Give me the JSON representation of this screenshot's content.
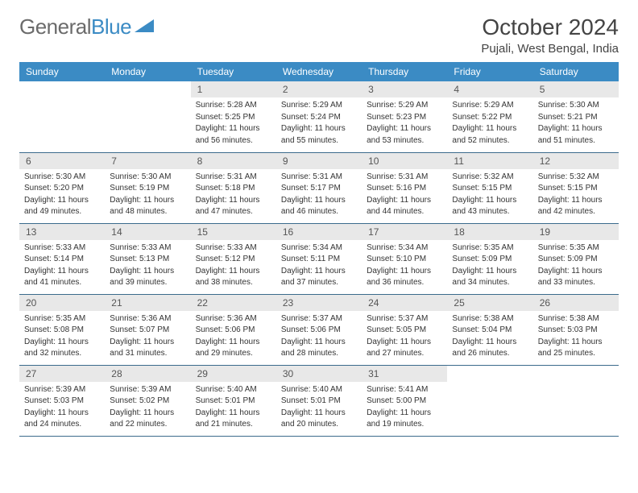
{
  "logo": {
    "text1": "General",
    "text2": "Blue"
  },
  "title": "October 2024",
  "location": "Pujali, West Bengal, India",
  "colors": {
    "header_bg": "#3b8bc4",
    "header_fg": "#ffffff",
    "daynum_bg": "#e8e8e8",
    "border": "#3b6b8c",
    "logo_gray": "#6b6b6b",
    "logo_blue": "#3b8bc4",
    "text": "#333333"
  },
  "typography": {
    "title_fontsize": 28,
    "location_fontsize": 15,
    "dayheader_fontsize": 12,
    "daynum_fontsize": 12,
    "body_fontsize": 10
  },
  "weekdays": [
    "Sunday",
    "Monday",
    "Tuesday",
    "Wednesday",
    "Thursday",
    "Friday",
    "Saturday"
  ],
  "weeks": [
    [
      null,
      null,
      {
        "n": "1",
        "sr": "Sunrise: 5:28 AM",
        "ss": "Sunset: 5:25 PM",
        "dl1": "Daylight: 11 hours",
        "dl2": "and 56 minutes."
      },
      {
        "n": "2",
        "sr": "Sunrise: 5:29 AM",
        "ss": "Sunset: 5:24 PM",
        "dl1": "Daylight: 11 hours",
        "dl2": "and 55 minutes."
      },
      {
        "n": "3",
        "sr": "Sunrise: 5:29 AM",
        "ss": "Sunset: 5:23 PM",
        "dl1": "Daylight: 11 hours",
        "dl2": "and 53 minutes."
      },
      {
        "n": "4",
        "sr": "Sunrise: 5:29 AM",
        "ss": "Sunset: 5:22 PM",
        "dl1": "Daylight: 11 hours",
        "dl2": "and 52 minutes."
      },
      {
        "n": "5",
        "sr": "Sunrise: 5:30 AM",
        "ss": "Sunset: 5:21 PM",
        "dl1": "Daylight: 11 hours",
        "dl2": "and 51 minutes."
      }
    ],
    [
      {
        "n": "6",
        "sr": "Sunrise: 5:30 AM",
        "ss": "Sunset: 5:20 PM",
        "dl1": "Daylight: 11 hours",
        "dl2": "and 49 minutes."
      },
      {
        "n": "7",
        "sr": "Sunrise: 5:30 AM",
        "ss": "Sunset: 5:19 PM",
        "dl1": "Daylight: 11 hours",
        "dl2": "and 48 minutes."
      },
      {
        "n": "8",
        "sr": "Sunrise: 5:31 AM",
        "ss": "Sunset: 5:18 PM",
        "dl1": "Daylight: 11 hours",
        "dl2": "and 47 minutes."
      },
      {
        "n": "9",
        "sr": "Sunrise: 5:31 AM",
        "ss": "Sunset: 5:17 PM",
        "dl1": "Daylight: 11 hours",
        "dl2": "and 46 minutes."
      },
      {
        "n": "10",
        "sr": "Sunrise: 5:31 AM",
        "ss": "Sunset: 5:16 PM",
        "dl1": "Daylight: 11 hours",
        "dl2": "and 44 minutes."
      },
      {
        "n": "11",
        "sr": "Sunrise: 5:32 AM",
        "ss": "Sunset: 5:15 PM",
        "dl1": "Daylight: 11 hours",
        "dl2": "and 43 minutes."
      },
      {
        "n": "12",
        "sr": "Sunrise: 5:32 AM",
        "ss": "Sunset: 5:15 PM",
        "dl1": "Daylight: 11 hours",
        "dl2": "and 42 minutes."
      }
    ],
    [
      {
        "n": "13",
        "sr": "Sunrise: 5:33 AM",
        "ss": "Sunset: 5:14 PM",
        "dl1": "Daylight: 11 hours",
        "dl2": "and 41 minutes."
      },
      {
        "n": "14",
        "sr": "Sunrise: 5:33 AM",
        "ss": "Sunset: 5:13 PM",
        "dl1": "Daylight: 11 hours",
        "dl2": "and 39 minutes."
      },
      {
        "n": "15",
        "sr": "Sunrise: 5:33 AM",
        "ss": "Sunset: 5:12 PM",
        "dl1": "Daylight: 11 hours",
        "dl2": "and 38 minutes."
      },
      {
        "n": "16",
        "sr": "Sunrise: 5:34 AM",
        "ss": "Sunset: 5:11 PM",
        "dl1": "Daylight: 11 hours",
        "dl2": "and 37 minutes."
      },
      {
        "n": "17",
        "sr": "Sunrise: 5:34 AM",
        "ss": "Sunset: 5:10 PM",
        "dl1": "Daylight: 11 hours",
        "dl2": "and 36 minutes."
      },
      {
        "n": "18",
        "sr": "Sunrise: 5:35 AM",
        "ss": "Sunset: 5:09 PM",
        "dl1": "Daylight: 11 hours",
        "dl2": "and 34 minutes."
      },
      {
        "n": "19",
        "sr": "Sunrise: 5:35 AM",
        "ss": "Sunset: 5:09 PM",
        "dl1": "Daylight: 11 hours",
        "dl2": "and 33 minutes."
      }
    ],
    [
      {
        "n": "20",
        "sr": "Sunrise: 5:35 AM",
        "ss": "Sunset: 5:08 PM",
        "dl1": "Daylight: 11 hours",
        "dl2": "and 32 minutes."
      },
      {
        "n": "21",
        "sr": "Sunrise: 5:36 AM",
        "ss": "Sunset: 5:07 PM",
        "dl1": "Daylight: 11 hours",
        "dl2": "and 31 minutes."
      },
      {
        "n": "22",
        "sr": "Sunrise: 5:36 AM",
        "ss": "Sunset: 5:06 PM",
        "dl1": "Daylight: 11 hours",
        "dl2": "and 29 minutes."
      },
      {
        "n": "23",
        "sr": "Sunrise: 5:37 AM",
        "ss": "Sunset: 5:06 PM",
        "dl1": "Daylight: 11 hours",
        "dl2": "and 28 minutes."
      },
      {
        "n": "24",
        "sr": "Sunrise: 5:37 AM",
        "ss": "Sunset: 5:05 PM",
        "dl1": "Daylight: 11 hours",
        "dl2": "and 27 minutes."
      },
      {
        "n": "25",
        "sr": "Sunrise: 5:38 AM",
        "ss": "Sunset: 5:04 PM",
        "dl1": "Daylight: 11 hours",
        "dl2": "and 26 minutes."
      },
      {
        "n": "26",
        "sr": "Sunrise: 5:38 AM",
        "ss": "Sunset: 5:03 PM",
        "dl1": "Daylight: 11 hours",
        "dl2": "and 25 minutes."
      }
    ],
    [
      {
        "n": "27",
        "sr": "Sunrise: 5:39 AM",
        "ss": "Sunset: 5:03 PM",
        "dl1": "Daylight: 11 hours",
        "dl2": "and 24 minutes."
      },
      {
        "n": "28",
        "sr": "Sunrise: 5:39 AM",
        "ss": "Sunset: 5:02 PM",
        "dl1": "Daylight: 11 hours",
        "dl2": "and 22 minutes."
      },
      {
        "n": "29",
        "sr": "Sunrise: 5:40 AM",
        "ss": "Sunset: 5:01 PM",
        "dl1": "Daylight: 11 hours",
        "dl2": "and 21 minutes."
      },
      {
        "n": "30",
        "sr": "Sunrise: 5:40 AM",
        "ss": "Sunset: 5:01 PM",
        "dl1": "Daylight: 11 hours",
        "dl2": "and 20 minutes."
      },
      {
        "n": "31",
        "sr": "Sunrise: 5:41 AM",
        "ss": "Sunset: 5:00 PM",
        "dl1": "Daylight: 11 hours",
        "dl2": "and 19 minutes."
      },
      null,
      null
    ]
  ]
}
